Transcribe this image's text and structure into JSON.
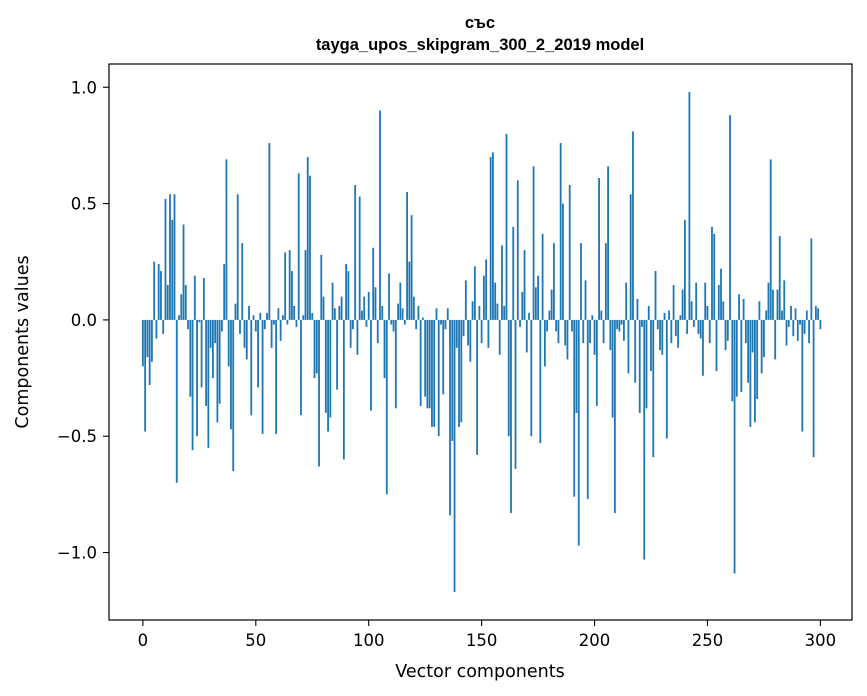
{
  "chart_data": {
    "type": "bar",
    "title_line1": "със",
    "title_line2": "tayga_upos_skipgram_300_2_2019 model",
    "xlabel": "Vector components",
    "ylabel": "Components values",
    "xlim": [
      -15,
      314
    ],
    "ylim": [
      -1.29,
      1.1
    ],
    "x_ticks": [
      0,
      50,
      100,
      150,
      200,
      250,
      300
    ],
    "y_ticks": [
      -1.0,
      -0.5,
      0.0,
      0.5,
      1.0
    ],
    "x_tick_labels": [
      "0",
      "50",
      "100",
      "150",
      "200",
      "250",
      "300"
    ],
    "y_tick_labels": [
      "−1.0",
      "−0.5",
      "0.0",
      "0.5",
      "1.0"
    ],
    "bar_color": "#1f77b4",
    "values": [
      -0.2,
      -0.48,
      -0.16,
      -0.28,
      -0.18,
      0.25,
      -0.08,
      0.24,
      0.21,
      -0.06,
      0.52,
      0.15,
      0.54,
      0.43,
      0.54,
      -0.7,
      0.02,
      0.11,
      0.41,
      0.15,
      -0.04,
      -0.33,
      -0.56,
      0.19,
      -0.5,
      -0.01,
      -0.29,
      0.18,
      -0.37,
      -0.55,
      -0.12,
      -0.25,
      -0.1,
      -0.44,
      -0.36,
      -0.05,
      0.24,
      0.69,
      -0.2,
      -0.47,
      -0.65,
      0.07,
      0.54,
      -0.06,
      0.33,
      -0.12,
      -0.17,
      0.06,
      -0.41,
      0.02,
      -0.05,
      -0.29,
      0.03,
      -0.49,
      -0.04,
      0.03,
      0.76,
      -0.12,
      -0.02,
      -0.49,
      0.05,
      -0.09,
      0.02,
      0.29,
      -0.02,
      0.3,
      0.21,
      0.06,
      -0.03,
      0.63,
      -0.41,
      0.02,
      0.3,
      0.7,
      0.62,
      0.03,
      -0.25,
      -0.23,
      -0.63,
      0.28,
      0.1,
      -0.4,
      -0.48,
      -0.42,
      0.16,
      0.05,
      -0.3,
      0.06,
      0.1,
      -0.6,
      0.24,
      0.21,
      -0.12,
      -0.04,
      0.58,
      -0.15,
      0.53,
      0.04,
      0.1,
      -0.03,
      0.12,
      -0.39,
      0.31,
      0.14,
      -0.1,
      0.9,
      0.06,
      -0.25,
      -0.75,
      0.2,
      -0.02,
      -0.05,
      -0.38,
      0.07,
      0.16,
      0.05,
      -0.02,
      0.55,
      0.25,
      0.45,
      0.1,
      -0.04,
      0.06,
      -0.37,
      0.01,
      -0.33,
      -0.38,
      -0.38,
      -0.46,
      -0.46,
      0.05,
      -0.5,
      -0.02,
      -0.32,
      -0.04,
      0.05,
      -0.84,
      -0.52,
      -1.17,
      -0.12,
      -0.46,
      -0.44,
      -0.07,
      0.17,
      -0.11,
      -0.18,
      0.08,
      0.23,
      -0.58,
      0.06,
      -0.1,
      0.19,
      0.26,
      -0.12,
      0.7,
      0.72,
      0.16,
      0.07,
      -0.15,
      0.32,
      0.06,
      0.8,
      -0.5,
      -0.83,
      0.4,
      -0.64,
      0.6,
      -0.03,
      0.12,
      0.3,
      -0.14,
      0.03,
      -0.5,
      0.66,
      0.14,
      0.19,
      -0.53,
      0.37,
      -0.2,
      -0.05,
      0.04,
      0.13,
      0.33,
      -0.05,
      -0.1,
      0.76,
      0.5,
      -0.11,
      -0.17,
      0.58,
      -0.05,
      -0.76,
      -0.4,
      -0.97,
      0.33,
      -0.1,
      0.17,
      -0.77,
      -0.1,
      0.02,
      -0.15,
      -0.37,
      0.61,
      0.04,
      -0.1,
      0.33,
      0.66,
      -0.13,
      -0.42,
      -0.83,
      -0.04,
      -0.05,
      -0.02,
      -0.09,
      0.16,
      -0.23,
      0.54,
      0.81,
      -0.27,
      0.09,
      -0.4,
      -0.03,
      -1.03,
      -0.38,
      0.06,
      -0.22,
      -0.59,
      0.21,
      -0.04,
      -0.13,
      -0.15,
      0.03,
      -0.51,
      0.04,
      -0.1,
      0.15,
      -0.07,
      -0.12,
      0.02,
      0.13,
      0.43,
      -0.06,
      0.98,
      0.08,
      -0.03,
      0.16,
      -0.06,
      -0.08,
      -0.24,
      0.16,
      0.06,
      -0.1,
      0.4,
      0.37,
      -0.22,
      0.15,
      0.22,
      0.08,
      -0.13,
      -0.09,
      0.88,
      -0.35,
      -1.09,
      -0.33,
      0.11,
      -0.31,
      0.09,
      -0.1,
      -0.27,
      -0.46,
      -0.14,
      -0.44,
      -0.34,
      0.08,
      -0.23,
      -0.16,
      0.04,
      0.16,
      0.69,
      0.13,
      -0.17,
      0.13,
      0.36,
      0.04,
      0.17,
      -0.11,
      -0.03,
      0.06,
      -0.07,
      0.05,
      -0.09,
      -0.02,
      -0.48,
      -0.06,
      0.04,
      -0.1,
      0.35,
      -0.59,
      0.06,
      0.05,
      -0.04
    ]
  }
}
